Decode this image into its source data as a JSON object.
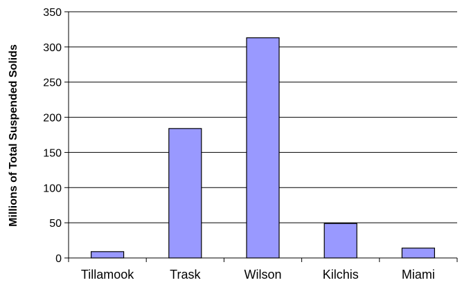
{
  "chart_data": {
    "type": "bar",
    "categories": [
      "Tillamook",
      "Trask",
      "Wilson",
      "Kilchis",
      "Miami"
    ],
    "values": [
      9,
      184,
      313,
      49,
      14
    ],
    "xlabel": "",
    "ylabel": "Millions of Total Suspended Solids",
    "ylim": [
      0,
      350
    ],
    "yticks": [
      0,
      50,
      100,
      150,
      200,
      250,
      300,
      350
    ],
    "grid": true,
    "legend": "none",
    "colors": {
      "bar_fill": "#9999FF",
      "bar_stroke": "#000000",
      "grid": "#000000",
      "axis": "#000000"
    }
  }
}
